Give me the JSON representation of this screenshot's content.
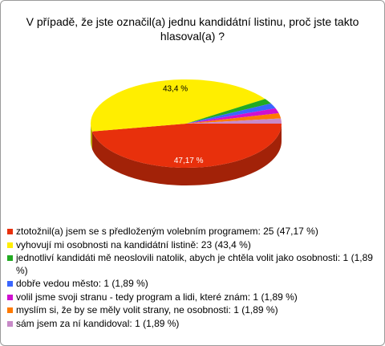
{
  "chart_data": {
    "type": "pie",
    "title": "V případě, že jste označil(a) jednu kandidátní listinu, proč jste takto hlasoval(a) ?",
    "categories": [
      "ztotožnil(a) jsem se s předloženým volebním programem: 25 (47,17 %)",
      "vyhovují mi osobnosti na kandidátní listině: 23 (43,4 %)",
      "jednotliví kandidáti mě neoslovili natolik, abych je chtěla volit jako osobnosti: 1 (1,89 %)",
      "dobře vedou město: 1 (1,89 %)",
      "volil jsme svoji stranu - tedy program a lidi, které znám: 1 (1,89 %)",
      "myslím si, že by se měly volit strany, ne osobnosti: 1 (1,89 %)",
      "sám jsem za ní kandidoval: 1 (1,89 %)"
    ],
    "values": [
      47.17,
      43.4,
      1.89,
      1.89,
      1.89,
      1.89,
      1.89
    ],
    "value_labels": [
      "47,17 %",
      "43,4 %",
      null,
      null,
      null,
      null,
      null
    ],
    "colors": [
      "#e8300c",
      "#ffee00",
      "#22aa22",
      "#3a66ff",
      "#d010d0",
      "#ff7a00",
      "#c88ac8"
    ]
  }
}
